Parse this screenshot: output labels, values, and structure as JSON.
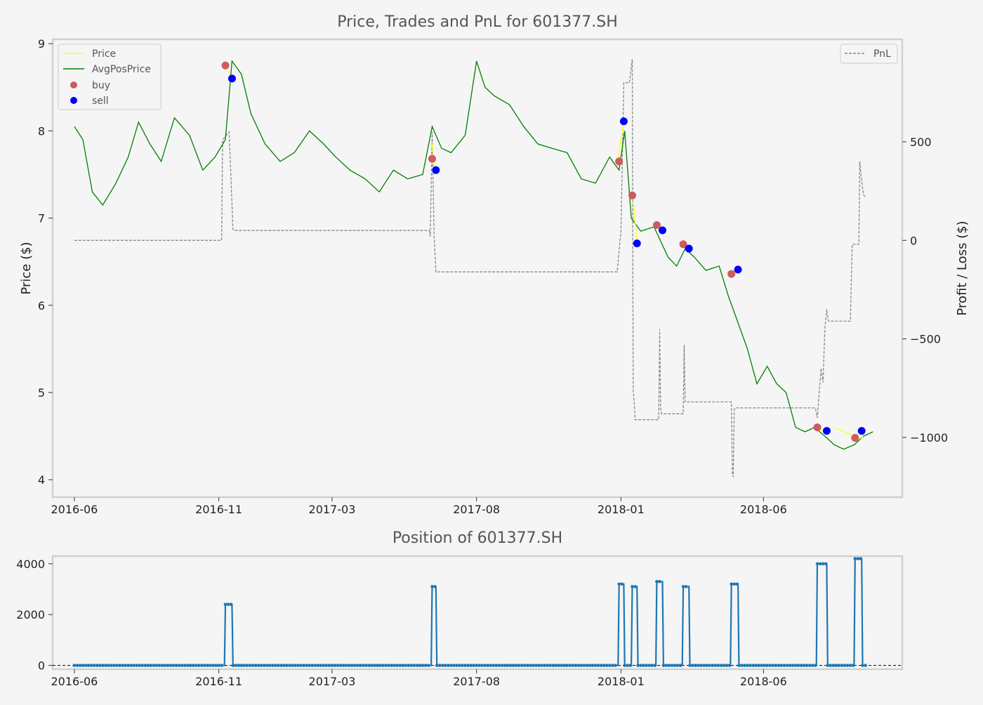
{
  "chart_data": [
    {
      "type": "line",
      "title": "Price, Trades and PnL for 601377.SH",
      "xlabel": "",
      "ylabel": "Price ($)",
      "y2label": "Profit / Loss ($)",
      "ylim": [
        3.8,
        9.05
      ],
      "y2lim": [
        -1303,
        1020
      ],
      "xlim": [
        "2016-05-09",
        "2018-10-26"
      ],
      "grid": false,
      "legend_left_placement": "upper left",
      "legend_right_placement": "upper right",
      "x_ticks": [
        "2016-06",
        "2016-11",
        "2017-03",
        "2017-08",
        "2018-01",
        "2018-06"
      ],
      "y_ticks": [
        "4",
        "5",
        "6",
        "7",
        "8",
        "9"
      ],
      "y2_ticks": [
        "500",
        "0",
        "−500",
        "−1000"
      ],
      "legend": {
        "price": "Price",
        "avgpos": "AvgPosPrice",
        "buy": "buy",
        "sell": "sell",
        "pnl": "PnL"
      },
      "colors": {
        "price": "#ffff33",
        "avgpos": "#008000",
        "buy": "#cd5c5c",
        "sell": "#0000ff",
        "pnl": "#888888",
        "frame": "#d0d0d0",
        "title": "#555555",
        "text": "#333333"
      },
      "series": [
        {
          "name": "AvgPosPrice",
          "x": [
            "2016-06-01",
            "2016-06-10",
            "2016-06-20",
            "2016-07-01",
            "2016-07-15",
            "2016-07-28",
            "2016-08-08",
            "2016-08-20",
            "2016-09-01",
            "2016-09-15",
            "2016-10-01",
            "2016-10-15",
            "2016-10-28",
            "2016-11-08",
            "2016-11-15",
            "2016-11-25",
            "2016-12-05",
            "2016-12-20",
            "2017-01-05",
            "2017-01-20",
            "2017-02-05",
            "2017-02-20",
            "2017-03-05",
            "2017-03-20",
            "2017-04-05",
            "2017-04-20",
            "2017-05-05",
            "2017-05-20",
            "2017-06-05",
            "2017-06-15",
            "2017-06-25",
            "2017-07-05",
            "2017-07-20",
            "2017-08-01",
            "2017-08-10",
            "2017-08-20",
            "2017-09-05",
            "2017-09-20",
            "2017-10-05",
            "2017-10-20",
            "2017-11-05",
            "2017-11-20",
            "2017-12-05",
            "2017-12-20",
            "2017-12-30",
            "2018-01-05",
            "2018-01-12",
            "2018-01-22",
            "2018-02-05",
            "2018-02-20",
            "2018-03-01",
            "2018-03-10",
            "2018-03-20",
            "2018-04-01",
            "2018-04-15",
            "2018-04-25",
            "2018-05-05",
            "2018-05-15",
            "2018-05-25",
            "2018-06-05",
            "2018-06-15",
            "2018-06-25",
            "2018-07-05",
            "2018-07-15",
            "2018-07-25",
            "2018-08-05",
            "2018-08-15",
            "2018-08-25",
            "2018-09-05",
            "2018-09-15",
            "2018-09-25"
          ],
          "y": [
            8.05,
            7.9,
            7.3,
            7.15,
            7.4,
            7.7,
            8.1,
            7.85,
            7.65,
            8.15,
            7.95,
            7.55,
            7.7,
            7.9,
            8.8,
            8.65,
            8.2,
            7.85,
            7.65,
            7.75,
            8.0,
            7.85,
            7.7,
            7.55,
            7.45,
            7.3,
            7.55,
            7.45,
            7.5,
            8.05,
            7.8,
            7.75,
            7.95,
            8.8,
            8.5,
            8.4,
            8.3,
            8.05,
            7.85,
            7.8,
            7.75,
            7.45,
            7.4,
            7.7,
            7.55,
            8.0,
            7.0,
            6.85,
            6.9,
            6.55,
            6.45,
            6.65,
            6.55,
            6.4,
            6.45,
            6.1,
            5.8,
            5.5,
            5.1,
            5.3,
            5.1,
            5.0,
            4.6,
            4.55,
            4.6,
            4.5,
            4.4,
            4.35,
            4.4,
            4.5,
            4.55
          ]
        },
        {
          "name": "Price",
          "x": [
            "2016-11-08",
            "2016-11-15",
            "2017-06-15",
            "2017-06-18",
            "2017-12-28",
            "2018-01-04",
            "2018-01-14",
            "2018-01-18",
            "2018-02-08",
            "2018-02-14",
            "2018-03-08",
            "2018-03-14",
            "2018-04-28",
            "2018-05-05",
            "2018-07-28",
            "2018-08-04",
            "2018-08-14",
            "2018-09-06",
            "2018-09-12",
            "2018-09-16"
          ],
          "y": [
            8.75,
            8.6,
            7.85,
            7.55,
            7.6,
            8.1,
            7.2,
            6.7,
            6.95,
            6.85,
            6.75,
            6.65,
            6.35,
            6.45,
            4.62,
            4.55,
            4.6,
            4.5,
            4.45,
            4.55
          ]
        },
        {
          "name": "PnL",
          "x": [
            "2016-06-01",
            "2016-11-04",
            "2016-11-05",
            "2016-11-12",
            "2016-11-16",
            "2016-11-17",
            "2017-06-12",
            "2017-06-13",
            "2017-06-15",
            "2017-06-17",
            "2017-06-19",
            "2017-06-20",
            "2017-12-28",
            "2018-01-01",
            "2018-01-04",
            "2018-01-10",
            "2018-01-13",
            "2018-01-14",
            "2018-01-15",
            "2018-01-16",
            "2018-01-17",
            "2018-01-20",
            "2018-02-10",
            "2018-02-11",
            "2018-02-12",
            "2018-02-13",
            "2018-03-08",
            "2018-03-09",
            "2018-03-10",
            "2018-03-11",
            "2018-04-28",
            "2018-04-29",
            "2018-04-30",
            "2018-05-01",
            "2018-05-02",
            "2018-07-26",
            "2018-07-28",
            "2018-08-01",
            "2018-08-03",
            "2018-08-05",
            "2018-08-07",
            "2018-08-09",
            "2018-09-01",
            "2018-09-03",
            "2018-09-06",
            "2018-09-10",
            "2018-09-11",
            "2018-09-13",
            "2018-09-15",
            "2018-09-17"
          ],
          "y": [
            0,
            0,
            510,
            550,
            55,
            50,
            50,
            20,
            550,
            30,
            -160,
            -160,
            -160,
            50,
            800,
            800,
            920,
            -760,
            -820,
            -910,
            -910,
            -910,
            -910,
            -450,
            -850,
            -880,
            -880,
            -530,
            -820,
            -820,
            -820,
            -1180,
            -1200,
            -860,
            -850,
            -850,
            -900,
            -650,
            -720,
            -450,
            -350,
            -410,
            -410,
            -20,
            -20,
            -20,
            400,
            300,
            230,
            220
          ]
        },
        {
          "name": "buy",
          "x": [
            "2016-11-08",
            "2017-06-15",
            "2017-12-30",
            "2018-01-13",
            "2018-02-08",
            "2018-03-08",
            "2018-04-28",
            "2018-07-28",
            "2018-09-06"
          ],
          "y": [
            8.75,
            7.68,
            7.65,
            7.26,
            6.92,
            6.7,
            6.36,
            4.6,
            4.48
          ]
        },
        {
          "name": "sell",
          "x": [
            "2016-11-15",
            "2017-06-19",
            "2018-01-04",
            "2018-01-18",
            "2018-02-14",
            "2018-03-14",
            "2018-05-05",
            "2018-08-07",
            "2018-09-13"
          ],
          "y": [
            8.6,
            7.55,
            8.11,
            6.71,
            6.86,
            6.65,
            6.41,
            4.56,
            4.56
          ]
        }
      ]
    },
    {
      "type": "line",
      "title": "Position of 601377.SH",
      "xlabel": "",
      "ylabel": "",
      "ylim": [
        -150,
        4300
      ],
      "xlim": [
        "2016-05-09",
        "2018-10-26"
      ],
      "x_ticks": [
        "2016-06",
        "2016-11",
        "2017-03",
        "2017-08",
        "2018-01",
        "2018-06"
      ],
      "y_ticks": [
        "4000",
        "2000",
        "0"
      ],
      "colors": {
        "line": "#1f77b4",
        "zero": "#000000"
      },
      "series": [
        {
          "name": "Position",
          "x": [
            "2016-06-01",
            "2016-11-07",
            "2016-11-08",
            "2016-11-15",
            "2016-11-16",
            "2017-06-14",
            "2017-06-15",
            "2017-06-19",
            "2017-06-20",
            "2017-12-29",
            "2017-12-30",
            "2018-01-04",
            "2018-01-05",
            "2018-01-12",
            "2018-01-13",
            "2018-01-18",
            "2018-01-19",
            "2018-02-07",
            "2018-02-08",
            "2018-02-14",
            "2018-02-15",
            "2018-03-07",
            "2018-03-08",
            "2018-03-14",
            "2018-03-15",
            "2018-04-27",
            "2018-04-28",
            "2018-05-05",
            "2018-05-06",
            "2018-07-27",
            "2018-07-28",
            "2018-08-07",
            "2018-08-08",
            "2018-09-05",
            "2018-09-06",
            "2018-09-13",
            "2018-09-14",
            "2018-09-17"
          ],
          "y": [
            0,
            0,
            2400,
            2400,
            0,
            0,
            3100,
            3100,
            0,
            0,
            3200,
            3200,
            0,
            0,
            3100,
            3100,
            0,
            0,
            3300,
            3300,
            0,
            0,
            3100,
            3100,
            0,
            0,
            3200,
            3200,
            0,
            0,
            4000,
            4000,
            0,
            0,
            4200,
            4200,
            0,
            0
          ]
        }
      ]
    }
  ]
}
